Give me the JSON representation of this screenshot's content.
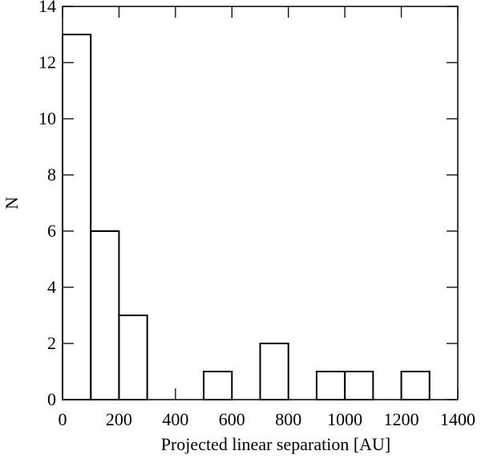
{
  "chart_data": {
    "type": "histogram",
    "xlabel": "Projected linear separation [AU]",
    "ylabel": "N",
    "bins": [
      0,
      100,
      200,
      300,
      400,
      500,
      600,
      700,
      800,
      900,
      1000,
      1100,
      1200,
      1300
    ],
    "values": [
      13,
      6,
      3,
      0,
      0,
      1,
      0,
      2,
      0,
      1,
      1,
      0,
      1
    ],
    "color": "#000000",
    "xlim": [
      0,
      1400
    ],
    "ylim": [
      0,
      14
    ],
    "xticks": [
      0,
      200,
      400,
      600,
      800,
      1000,
      1200,
      1400
    ],
    "yticks": [
      0,
      2,
      4,
      6,
      8,
      10,
      12,
      14
    ]
  }
}
